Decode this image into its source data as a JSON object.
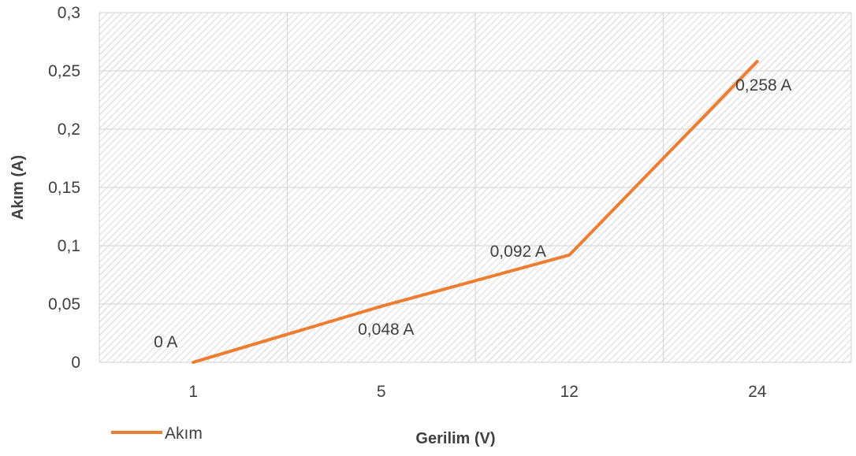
{
  "chart_data": {
    "type": "line",
    "categories": [
      "1",
      "5",
      "12",
      "24"
    ],
    "series": [
      {
        "name": "Akım",
        "values": [
          0,
          0.048,
          0.092,
          0.258
        ],
        "color": "#ED7D31",
        "data_labels": [
          "0 A",
          "0,048 A",
          "0,092 A",
          "0,258 A"
        ]
      }
    ],
    "xlabel": "Gerilim (V)",
    "ylabel": "Akım (A)",
    "ylim": [
      0,
      0.3
    ],
    "yticks": [
      "0",
      "0,05",
      "0,1",
      "0,15",
      "0,2",
      "0,25",
      "0,3"
    ],
    "grid": true,
    "plot_fill": "diagonal hatch",
    "legend_position": "bottom-left"
  }
}
